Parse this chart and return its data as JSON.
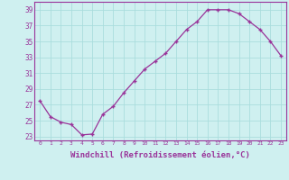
{
  "x": [
    0,
    1,
    2,
    3,
    4,
    5,
    6,
    7,
    8,
    9,
    10,
    11,
    12,
    13,
    14,
    15,
    16,
    17,
    18,
    19,
    20,
    21,
    22,
    23
  ],
  "y": [
    27.5,
    25.5,
    24.8,
    24.5,
    23.2,
    23.3,
    25.8,
    26.8,
    28.5,
    30.0,
    31.5,
    32.5,
    33.5,
    35.0,
    36.5,
    37.5,
    39.0,
    39.0,
    39.0,
    38.5,
    37.5,
    36.5,
    35.0,
    33.2
  ],
  "line_color": "#993399",
  "marker": "+",
  "marker_size": 3,
  "xlabel": "Windchill (Refroidissement éolien,°C)",
  "xlabel_fontsize": 6.5,
  "ylabel_ticks": [
    23,
    25,
    27,
    29,
    31,
    33,
    35,
    37,
    39
  ],
  "xticks": [
    0,
    1,
    2,
    3,
    4,
    5,
    6,
    7,
    8,
    9,
    10,
    11,
    12,
    13,
    14,
    15,
    16,
    17,
    18,
    19,
    20,
    21,
    22,
    23
  ],
  "xlim": [
    -0.5,
    23.5
  ],
  "ylim": [
    22.5,
    40.0
  ],
  "background_color": "#cff0f0",
  "grid_color": "#aadddd",
  "spine_color": "#993399"
}
